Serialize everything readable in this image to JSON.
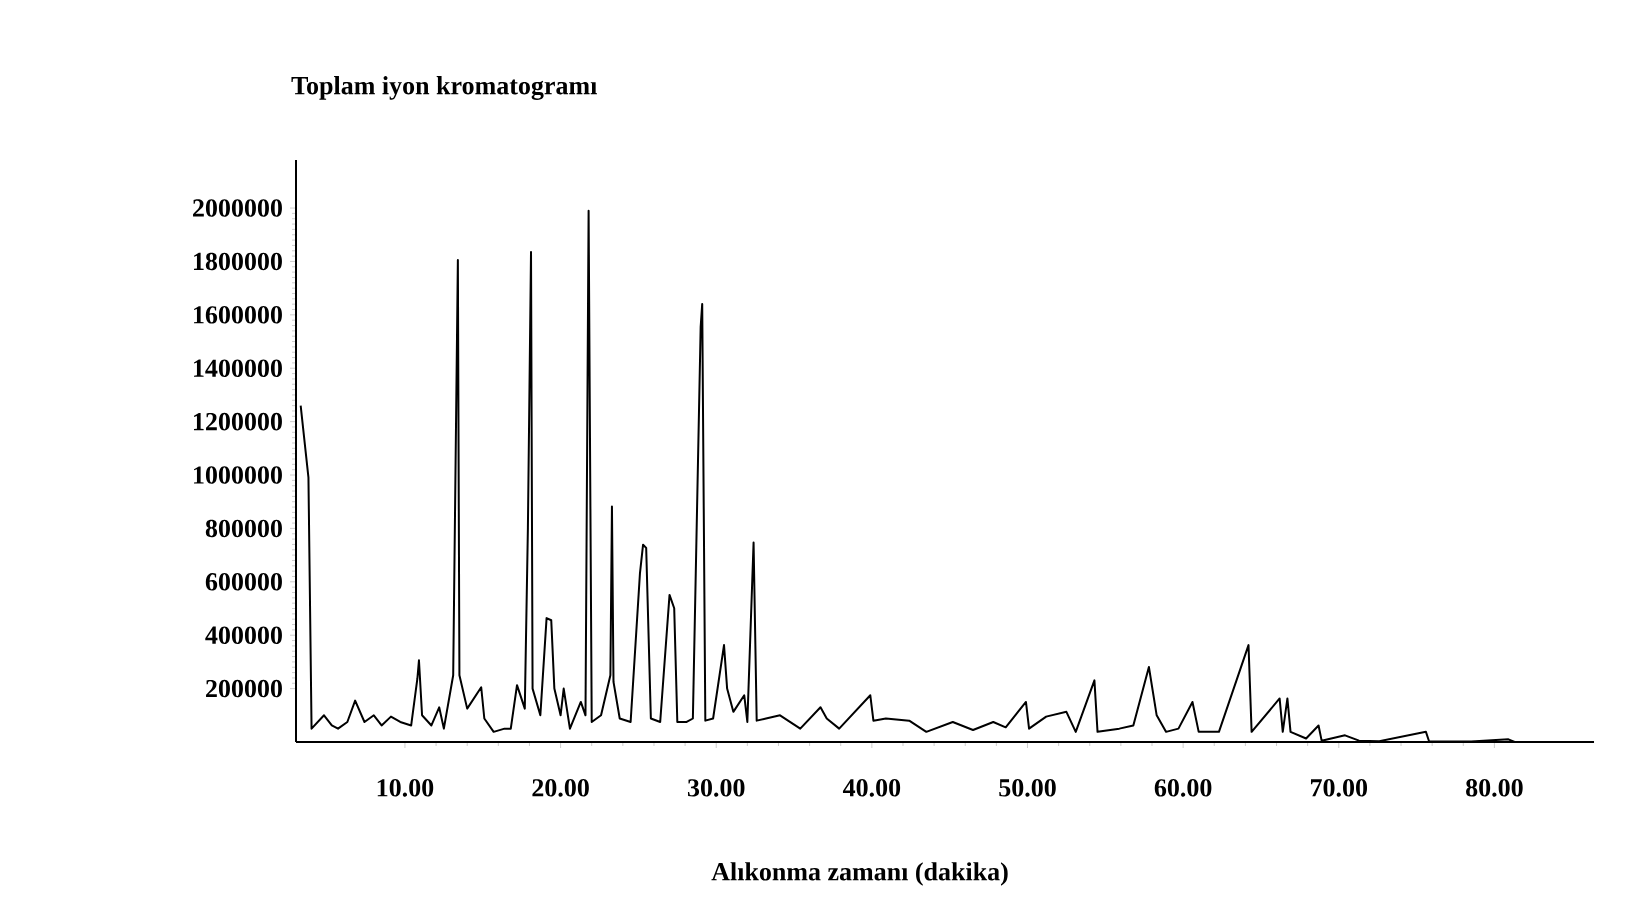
{
  "chart_data": {
    "type": "line",
    "title": "Toplam iyon kromatogramı",
    "xlabel": "Alıkonma zamanı (dakika)",
    "xlim": [
      3,
      86.4
    ],
    "ylim": [
      0,
      2180000
    ],
    "xticks": [
      {
        "value": 10,
        "label": "10.00"
      },
      {
        "value": 20,
        "label": "20.00"
      },
      {
        "value": 30,
        "label": "30.00"
      },
      {
        "value": 40,
        "label": "40.00"
      },
      {
        "value": 50,
        "label": "50.00"
      },
      {
        "value": 60,
        "label": "60.00"
      },
      {
        "value": 70,
        "label": "70.00"
      },
      {
        "value": 80,
        "label": "80.00"
      }
    ],
    "yticks": [
      200000,
      400000,
      600000,
      800000,
      1000000,
      1200000,
      1400000,
      1600000,
      1800000,
      2000000
    ],
    "grid": false,
    "marker": "none",
    "line_style": "solid",
    "series": [
      {
        "color": "#000000",
        "x": [
          3.3,
          3.8,
          4.0,
          4.4,
          4.8,
          5.3,
          5.7,
          6.3,
          6.8,
          7.4,
          8.0,
          8.5,
          9.1,
          9.7,
          10.4,
          10.8,
          10.9,
          11.1,
          11.7,
          12.2,
          12.5,
          13.1,
          13.4,
          13.5,
          14.0,
          14.9,
          15.1,
          15.7,
          16.4,
          16.8,
          17.2,
          17.7,
          17.9,
          18.1,
          18.2,
          18.7,
          19.1,
          19.4,
          19.6,
          20.0,
          20.2,
          20.6,
          21.3,
          21.6,
          21.8,
          22.0,
          22.6,
          23.2,
          23.3,
          23.4,
          23.8,
          24.5,
          25.1,
          25.3,
          25.5,
          25.8,
          26.4,
          27.0,
          27.3,
          27.5,
          28.1,
          28.5,
          29.0,
          29.1,
          29.3,
          29.8,
          30.5,
          30.7,
          31.1,
          31.8,
          32.0,
          32.4,
          32.6,
          33.2,
          34.1,
          35.4,
          36.7,
          37.1,
          37.9,
          39.9,
          40.1,
          40.9,
          42.4,
          43.5,
          45.2,
          46.5,
          47.8,
          48.6,
          49.9,
          50.1,
          51.2,
          52.5,
          53.1,
          54.3,
          54.5,
          55.9,
          56.8,
          57.8,
          58.3,
          58.9,
          59.7,
          60.6,
          61.0,
          62.3,
          64.2,
          64.4,
          66.2,
          66.4,
          66.7,
          66.9,
          67.9,
          68.7,
          68.9,
          70.4,
          71.3,
          72.6,
          75.6,
          75.8,
          78.5,
          80.9,
          81.3,
          86.2
        ],
        "values": [
          1260000,
          990000,
          50000,
          75000,
          100000,
          62000,
          50000,
          75000,
          155000,
          75000,
          100000,
          62000,
          95000,
          75000,
          62000,
          238000,
          306000,
          100000,
          62000,
          130000,
          50000,
          250000,
          1805000,
          250000,
          125000,
          205000,
          88000,
          38000,
          50000,
          50000,
          213000,
          125000,
          802000,
          1835000,
          200000,
          100000,
          464000,
          456000,
          200000,
          100000,
          200000,
          50000,
          150000,
          100000,
          1990000,
          75000,
          100000,
          250000,
          882000,
          225000,
          88000,
          75000,
          632000,
          739000,
          727000,
          88000,
          75000,
          551000,
          501000,
          75000,
          75000,
          88000,
          1554000,
          1641000,
          80000,
          88000,
          363000,
          200000,
          113000,
          175000,
          75000,
          747000,
          80000,
          88000,
          100000,
          50000,
          130000,
          88000,
          50000,
          175000,
          80000,
          88000,
          80000,
          38000,
          75000,
          45000,
          75000,
          55000,
          150000,
          50000,
          95000,
          113000,
          38000,
          231000,
          38000,
          50000,
          62000,
          281000,
          100000,
          38000,
          50000,
          150000,
          38000,
          38000,
          363000,
          38000,
          163000,
          38000,
          163000,
          38000,
          13000,
          62000,
          5000,
          25000,
          5000,
          3000,
          38000,
          3000,
          2000,
          10000,
          0,
          0
        ]
      }
    ]
  }
}
